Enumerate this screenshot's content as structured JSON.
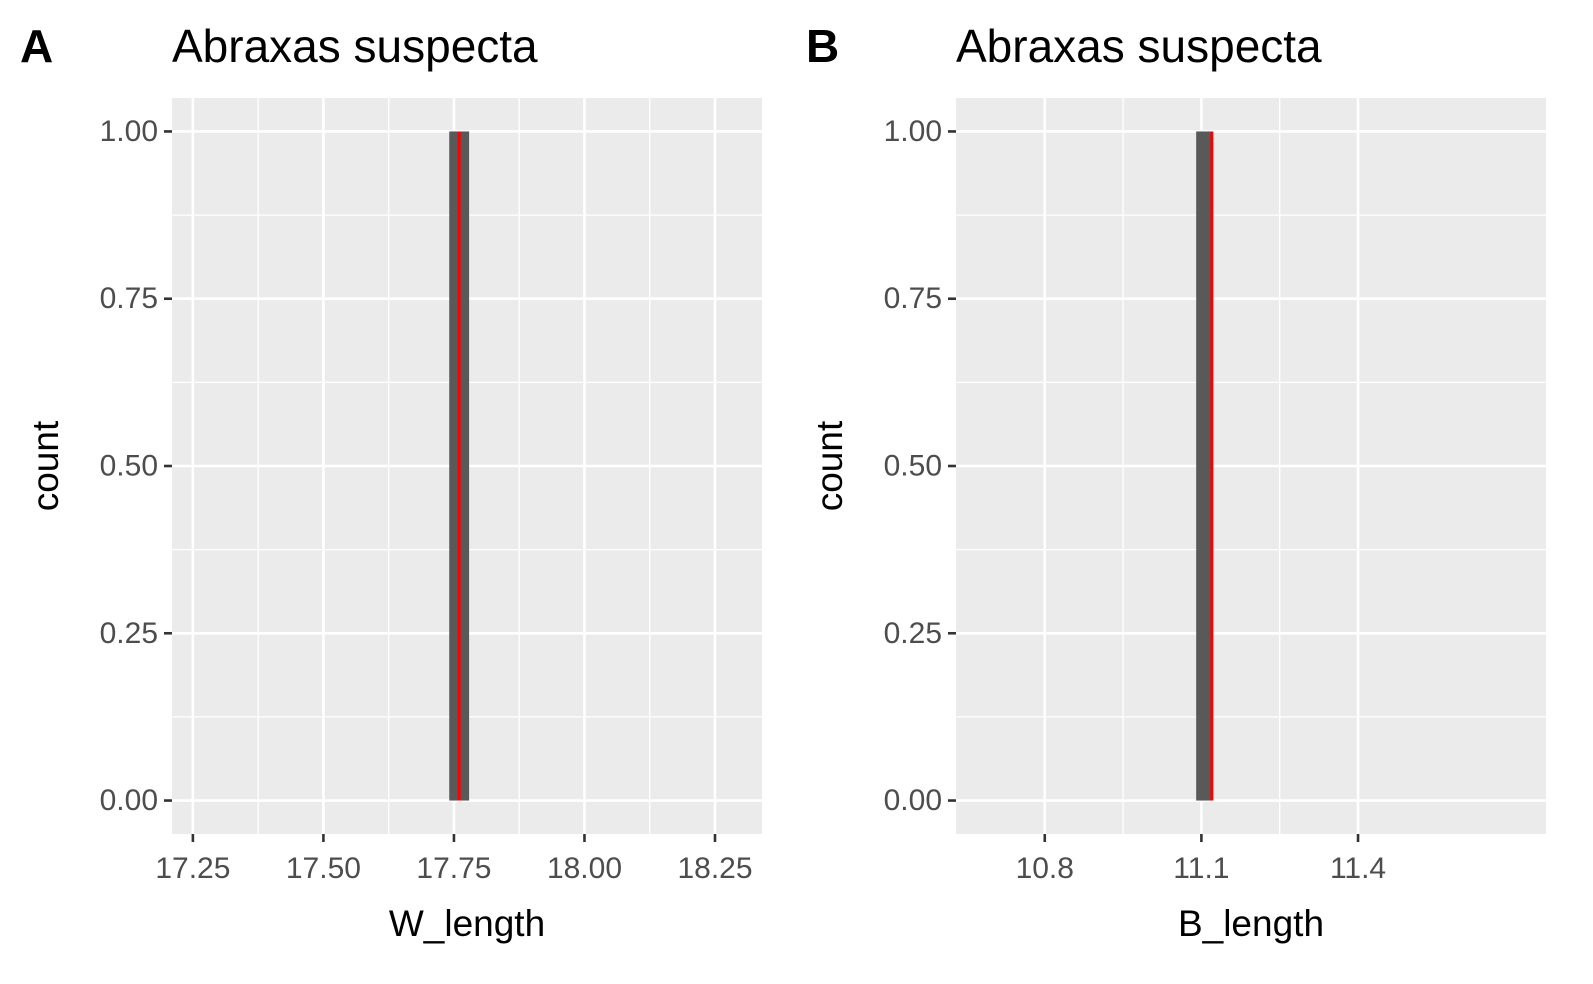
{
  "chart_data": [
    {
      "type": "bar",
      "tag": "A",
      "title": "Abraxas suspecta",
      "xlabel": "W_length",
      "ylabel": "count",
      "xlim": [
        17.21,
        18.34
      ],
      "ylim": [
        -0.05,
        1.05
      ],
      "x_ticks": [
        {
          "value": 17.25,
          "label": "17.25"
        },
        {
          "value": 17.5,
          "label": "17.50"
        },
        {
          "value": 17.75,
          "label": "17.75"
        },
        {
          "value": 18.0,
          "label": "18.00"
        },
        {
          "value": 18.25,
          "label": "18.25"
        }
      ],
      "y_ticks": [
        {
          "value": 0,
          "label": "0.00"
        },
        {
          "value": 0.25,
          "label": "0.25"
        },
        {
          "value": 0.5,
          "label": "0.50"
        },
        {
          "value": 0.75,
          "label": "0.75"
        },
        {
          "value": 1.0,
          "label": "1.00"
        }
      ],
      "bars": [
        {
          "xmin": 17.741,
          "xmax": 17.779,
          "count": 1
        }
      ],
      "reference_line": {
        "x": 17.76,
        "color": "#ff0000"
      },
      "bar_color": "#595959",
      "grid": true
    },
    {
      "type": "bar",
      "tag": "B",
      "title": "Abraxas suspecta",
      "xlabel": "B_length",
      "ylabel": "count",
      "xlim": [
        10.63,
        11.76
      ],
      "ylim": [
        -0.05,
        1.05
      ],
      "x_ticks": [
        {
          "value": 10.8,
          "label": "10.8"
        },
        {
          "value": 11.1,
          "label": "11.1"
        },
        {
          "value": 11.4,
          "label": "11.4"
        }
      ],
      "y_ticks": [
        {
          "value": 0,
          "label": "0.00"
        },
        {
          "value": 0.25,
          "label": "0.25"
        },
        {
          "value": 0.5,
          "label": "0.50"
        },
        {
          "value": 0.75,
          "label": "0.75"
        },
        {
          "value": 1.0,
          "label": "1.00"
        }
      ],
      "bars": [
        {
          "xmin": 11.09,
          "xmax": 11.12,
          "count": 1
        }
      ],
      "reference_line": {
        "x": 11.12,
        "color": "#ff0000"
      },
      "bar_color": "#595959",
      "grid": true
    }
  ]
}
